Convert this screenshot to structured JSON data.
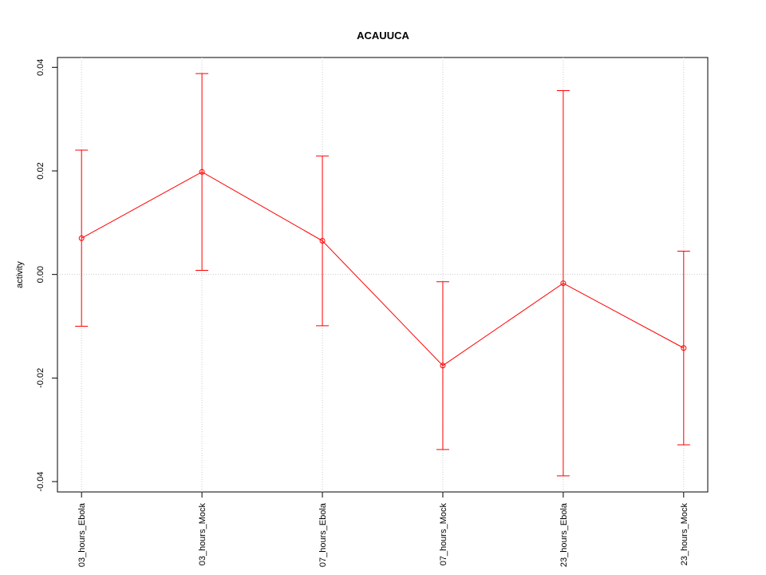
{
  "chart_data": {
    "type": "errorbar",
    "title": "ACAUUCA",
    "y_label": "activity",
    "categories": [
      "03_hours_Ebola",
      "03_hours_Mock",
      "07_hours_Ebola",
      "07_hours_Mock",
      "23_hours_Ebola",
      "23_hours_Mock"
    ],
    "values": [
      0.007,
      0.0198,
      0.0065,
      -0.0176,
      -0.0017,
      -0.0142
    ],
    "errors": [
      0.017,
      0.019,
      0.0164,
      0.0162,
      0.0372,
      0.0187
    ],
    "color": "#ff0000",
    "ylim": [
      -0.042,
      0.0419
    ],
    "yticks": [
      -0.04,
      -0.02,
      {
        "value": 0,
        "label": "0.00"
      },
      0.02,
      0.04
    ],
    "reference_line": 0,
    "grid": true
  }
}
